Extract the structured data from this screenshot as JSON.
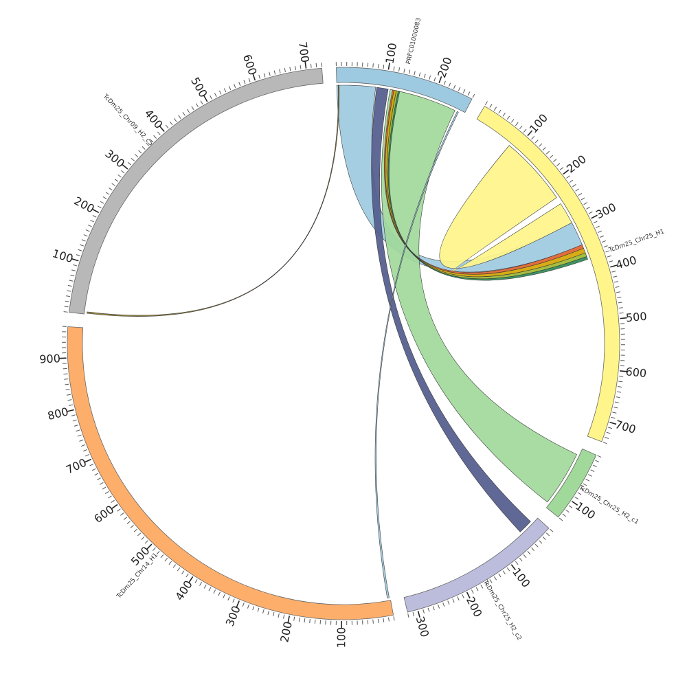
{
  "chart_data": {
    "type": "chord",
    "title": "",
    "segments": [
      {
        "name": "PRFC01000083",
        "length": 270,
        "color": "#9ECAE1",
        "tick_labels": [
          "100",
          "200"
        ]
      },
      {
        "name": "TcDm25_Chr25_H1",
        "length": 740,
        "color": "#FFF58A",
        "tick_labels": [
          "100",
          "200",
          "300",
          "400",
          "500",
          "600",
          "700"
        ]
      },
      {
        "name": "TcDm25_Chr25_H2_c1",
        "length": 140,
        "color": "#A1D99B",
        "tick_labels": [
          "100"
        ]
      },
      {
        "name": "TcDm25_Chr25_H2_c2",
        "length": 320,
        "color": "#BCBDDC",
        "tick_labels": [
          "100",
          "200",
          "300"
        ]
      },
      {
        "name": "TcDm25_Chr14_H1",
        "length": 960,
        "color": "#FDAE6B",
        "tick_labels": [
          "100",
          "200",
          "300",
          "400",
          "500",
          "600",
          "700",
          "800",
          "900"
        ]
      },
      {
        "name": "TcDm25_Chr09_H2_c5",
        "length": 730,
        "color": "#B8B8B8",
        "tick_labels": [
          "100",
          "200",
          "300",
          "400",
          "500",
          "600",
          "700"
        ]
      }
    ],
    "links": [
      {
        "from": {
          "seg": 0,
          "start": 0,
          "end": 80
        },
        "to": {
          "seg": 1,
          "start": 290,
          "end": 340
        },
        "color": "#9ECAE1"
      },
      {
        "from": {
          "seg": 1,
          "start": 85,
          "end": 230
        },
        "to": {
          "seg": 1,
          "start": 245,
          "end": 290
        },
        "color": "#FFF58A"
      },
      {
        "from": {
          "seg": 0,
          "start": 110,
          "end": 250
        },
        "to": {
          "seg": 2,
          "start": 15,
          "end": 130
        },
        "color": "#A1D99B"
      },
      {
        "from": {
          "seg": 0,
          "start": 82,
          "end": 106
        },
        "to": {
          "seg": 3,
          "start": 15,
          "end": 45
        },
        "color": "#525C8C"
      },
      {
        "from": {
          "seg": 0,
          "start": 115,
          "end": 118
        },
        "to": {
          "seg": 1,
          "start": 340,
          "end": 348
        },
        "color": "#E0622C"
      },
      {
        "from": {
          "seg": 0,
          "start": 118,
          "end": 123
        },
        "to": {
          "seg": 1,
          "start": 348,
          "end": 358
        },
        "color": "#D4A500"
      },
      {
        "from": {
          "seg": 0,
          "start": 123,
          "end": 127
        },
        "to": {
          "seg": 1,
          "start": 358,
          "end": 366
        },
        "color": "#9DB832"
      },
      {
        "from": {
          "seg": 0,
          "start": 127,
          "end": 130
        },
        "to": {
          "seg": 1,
          "start": 366,
          "end": 372
        },
        "color": "#2E8B57"
      },
      {
        "from": {
          "seg": 0,
          "start": 255,
          "end": 258
        },
        "to": {
          "seg": 4,
          "start": 2,
          "end": 6
        },
        "color": "#9ECAE1"
      },
      {
        "from": {
          "seg": 0,
          "start": 3,
          "end": 5
        },
        "to": {
          "seg": 5,
          "start": 2,
          "end": 5
        },
        "color": "#8B7A2B"
      }
    ]
  }
}
